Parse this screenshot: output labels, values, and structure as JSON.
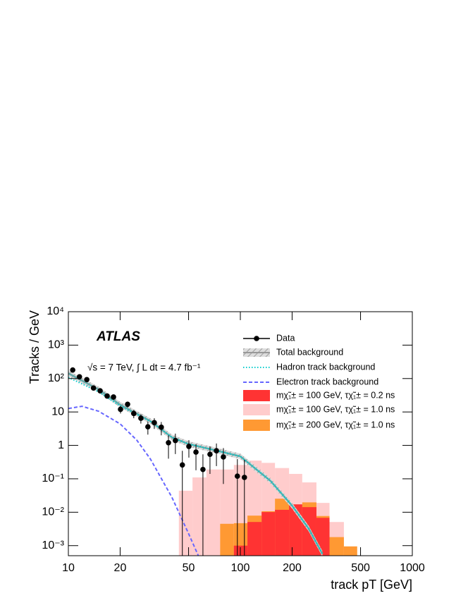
{
  "chart_data": {
    "type": "histogram",
    "xlabel": "track pT [GeV]",
    "ylabel": "Tracks / GeV",
    "annotations": [
      "ATLAS",
      "√s = 7 TeV, ∫ L dt = 4.7 fb⁻¹"
    ],
    "log_x": true,
    "log_y": true,
    "xlim": [
      10,
      1000
    ],
    "ylim": [
      0.0005,
      10000
    ],
    "xticks": [
      10,
      20,
      50,
      100,
      200,
      500,
      1000
    ],
    "yticks": [
      {
        "value": 0.001,
        "label": "10⁻³"
      },
      {
        "value": 0.01,
        "label": "10⁻²"
      },
      {
        "value": 0.1,
        "label": "10⁻¹"
      },
      1,
      10,
      {
        "value": 100,
        "label": "10²"
      },
      {
        "value": 1000,
        "label": "10³"
      },
      {
        "value": 10000,
        "label": "10⁴"
      }
    ],
    "legend": "upper right",
    "points": {
      "name": "Data",
      "color": "#000000",
      "x": [
        10.6,
        11.6,
        12.8,
        14.0,
        15.3,
        16.8,
        18.3,
        20.1,
        22.1,
        24.0,
        26.4,
        29.0,
        31.6,
        34.7,
        38.2,
        41.9,
        46.0,
        50.2,
        55.2,
        60.6,
        66.6,
        72.6,
        79.7,
        96.1,
        105.6
      ],
      "values": [
        180,
        113,
        93,
        52,
        43,
        30,
        28,
        12,
        17,
        9,
        6.5,
        3.6,
        4.8,
        3.5,
        1.2,
        1.4,
        0.26,
        0.93,
        0.63,
        0.19,
        0.54,
        0.69,
        0.45,
        0.12,
        0.11
      ],
      "errors": [
        20,
        15,
        13,
        8,
        7,
        5,
        5,
        3,
        3.5,
        2.5,
        2,
        1.5,
        1.7,
        1.5,
        0.8,
        0.85,
        0.43,
        0.5,
        0.45,
        0.35,
        0.4,
        0.45,
        0.38,
        0.27,
        0.26
      ]
    },
    "curves": [
      {
        "name": "Total background",
        "color": "#66aaaa",
        "style": "band",
        "x": [
          10,
          15,
          20,
          30,
          40,
          50,
          70,
          100,
          150,
          200,
          250,
          300
        ],
        "values": [
          143,
          47,
          16.5,
          5.3,
          1.74,
          1.1,
          0.73,
          0.47,
          0.086,
          0.0156,
          0.0032,
          0.00057
        ]
      },
      {
        "name": "Hadron track background",
        "color": "#00cccc",
        "style": "dotted",
        "x": [
          10,
          15,
          20,
          30,
          40,
          50,
          70,
          100,
          150,
          200,
          250,
          300
        ],
        "values": [
          108,
          40,
          15,
          5.2,
          1.74,
          1.1,
          0.73,
          0.47,
          0.086,
          0.0156,
          0.0032,
          0.00057
        ]
      },
      {
        "name": "Electron track background",
        "color": "#6666ff",
        "style": "dashed",
        "x": [
          10,
          12,
          15,
          20,
          25,
          30,
          40,
          50,
          57
        ],
        "values": [
          12.7,
          14.8,
          10.5,
          4.4,
          1.43,
          0.39,
          0.028,
          0.0023,
          0.0005
        ]
      }
    ],
    "bins": [
      43.9,
      52.7,
      63.5,
      76.3,
      91.7,
      110,
      133,
      159,
      192,
      229,
      277,
      330,
      400,
      478
    ],
    "series": [
      {
        "name": "mχ̃₁± = 100 GeV, τχ̃₁± = 0.2 ns",
        "color": "#ff3333",
        "values": [
          null,
          null,
          null,
          null,
          0.001,
          0.0051,
          0.0101,
          0.0118,
          0.0172,
          0.0142,
          0.0068,
          null,
          null
        ]
      },
      {
        "name": "mχ̃₁± = 100 GeV, τχ̃₁± = 1.0 ns",
        "color": "#ffcccc",
        "values": [
          0.044,
          0.11,
          0.19,
          0.19,
          0.26,
          0.35,
          0.3,
          0.21,
          0.14,
          0.078,
          0.019,
          0.0051,
          null
        ]
      },
      {
        "name": "mχ̃₁± = 200 GeV, τχ̃₁± = 1.0 ns",
        "color": "#ff9933",
        "values": [
          null,
          null,
          null,
          0.0045,
          0.0047,
          0.0079,
          0.0107,
          0.0254,
          0.0165,
          0.0197,
          0.0077,
          0.0018,
          0.00095
        ]
      }
    ]
  }
}
